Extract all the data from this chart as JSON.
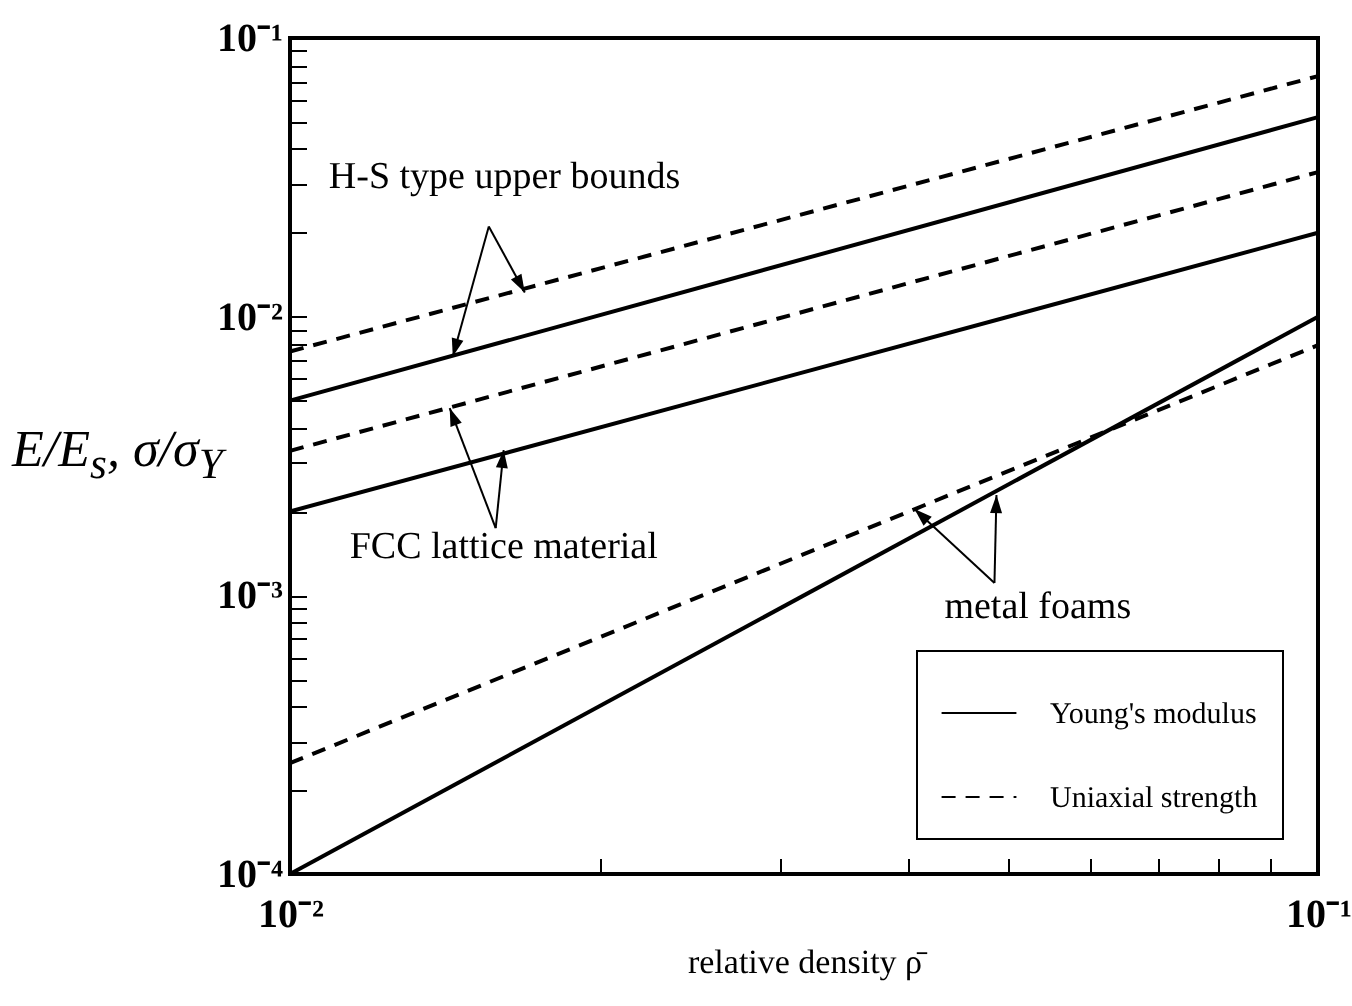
{
  "chart_data": {
    "type": "line",
    "xlabel": "relative density ρ̄",
    "ylabel": "E/E$_{s}$,  σ/σ$_{Y}$",
    "log": "xy",
    "grid": false,
    "legend": "bottom right",
    "marker": "none",
    "xlim": [
      0.01,
      0.1
    ],
    "ylim": [
      0.0001,
      0.1
    ],
    "xticks": [
      {
        "value": 0.01,
        "label": "10⁻²"
      },
      {
        "value": 0.02,
        "label": null
      },
      {
        "value": 0.03,
        "label": null
      },
      {
        "value": 0.04,
        "label": null
      },
      {
        "value": 0.05,
        "label": null
      },
      {
        "value": 0.06,
        "label": null
      },
      {
        "value": 0.07,
        "label": null
      },
      {
        "value": 0.08,
        "label": null
      },
      {
        "value": 0.09,
        "label": null
      },
      {
        "value": 0.1,
        "label": "10⁻¹"
      }
    ],
    "yticks": [
      {
        "value": 0.0001,
        "label": "10⁻⁴"
      },
      {
        "value": 0.0002,
        "label": null
      },
      {
        "value": 0.0003,
        "label": null
      },
      {
        "value": 0.0004,
        "label": null
      },
      {
        "value": 0.0005,
        "label": null
      },
      {
        "value": 0.0006,
        "label": null
      },
      {
        "value": 0.0007,
        "label": null
      },
      {
        "value": 0.0008,
        "label": null
      },
      {
        "value": 0.0009,
        "label": null
      },
      {
        "value": 0.001,
        "label": "10⁻³"
      },
      {
        "value": 0.002,
        "label": null
      },
      {
        "value": 0.003,
        "label": null
      },
      {
        "value": 0.004,
        "label": null
      },
      {
        "value": 0.005,
        "label": null
      },
      {
        "value": 0.006,
        "label": null
      },
      {
        "value": 0.007,
        "label": null
      },
      {
        "value": 0.008,
        "label": null
      },
      {
        "value": 0.009,
        "label": null
      },
      {
        "value": 0.01,
        "label": "10⁻²"
      },
      {
        "value": 0.02,
        "label": null
      },
      {
        "value": 0.03,
        "label": null
      },
      {
        "value": 0.04,
        "label": null
      },
      {
        "value": 0.05,
        "label": null
      },
      {
        "value": 0.06,
        "label": null
      },
      {
        "value": 0.07,
        "label": null
      },
      {
        "value": 0.08,
        "label": null
      },
      {
        "value": 0.09,
        "label": null
      },
      {
        "value": 0.1,
        "label": "10⁻¹"
      }
    ],
    "x": [
      0.01,
      0.1
    ],
    "series": [
      {
        "name": "Young's modulus",
        "color": "#000000",
        "line_style": "solid",
        "values": [
          0.005,
          0.052
        ]
      },
      {
        "name": "Uniaxial strength",
        "color": "#000000",
        "line_style": "dashed",
        "values": [
          0.0075,
          0.073
        ]
      },
      {
        "color": "#000000",
        "line_style": "solid",
        "values": [
          0.002,
          0.02
        ]
      },
      {
        "color": "#000000",
        "line_style": "dashed",
        "values": [
          0.0033,
          0.033
        ]
      },
      {
        "color": "#000000",
        "line_style": "solid",
        "values": [
          0.0001,
          0.01
        ]
      },
      {
        "color": "#000000",
        "line_style": "dashed",
        "values": [
          0.00025,
          0.0079
        ]
      }
    ],
    "annotations": [
      {
        "text": "H-S type upper bounds",
        "x": 0.0144,
        "y": 0.0072
      },
      {
        "text": "FCC lattice material",
        "x": 0.0143,
        "y": 0.0047
      },
      {
        "text": "metal foams",
        "x": 0.0405,
        "y": 0.00204
      }
    ]
  }
}
